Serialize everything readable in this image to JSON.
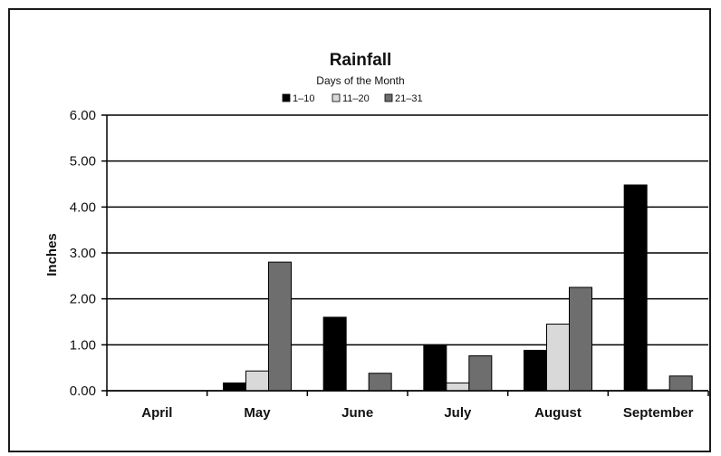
{
  "chart_data": {
    "type": "bar",
    "title": "Rainfall",
    "subtitle": "Days of the Month",
    "xlabel": "",
    "ylabel": "Inches",
    "ylim": [
      0,
      6
    ],
    "yticks": [
      "0.00",
      "1.00",
      "2.00",
      "3.00",
      "4.00",
      "5.00",
      "6.00"
    ],
    "grid": true,
    "legend_position": "top",
    "categories": [
      "April",
      "May",
      "June",
      "July",
      "August",
      "September"
    ],
    "series": [
      {
        "name": "1–10",
        "color": "#000000",
        "values": [
          0,
          0.17,
          1.6,
          1.0,
          0.88,
          4.48
        ]
      },
      {
        "name": "11–20",
        "color": "#d9d9d9",
        "values": [
          0,
          0.43,
          0,
          0.17,
          1.45,
          0.02
        ]
      },
      {
        "name": "21–31",
        "color": "#6e6e6e",
        "values": [
          0,
          2.8,
          0.38,
          0.76,
          2.25,
          0.32
        ]
      }
    ]
  }
}
